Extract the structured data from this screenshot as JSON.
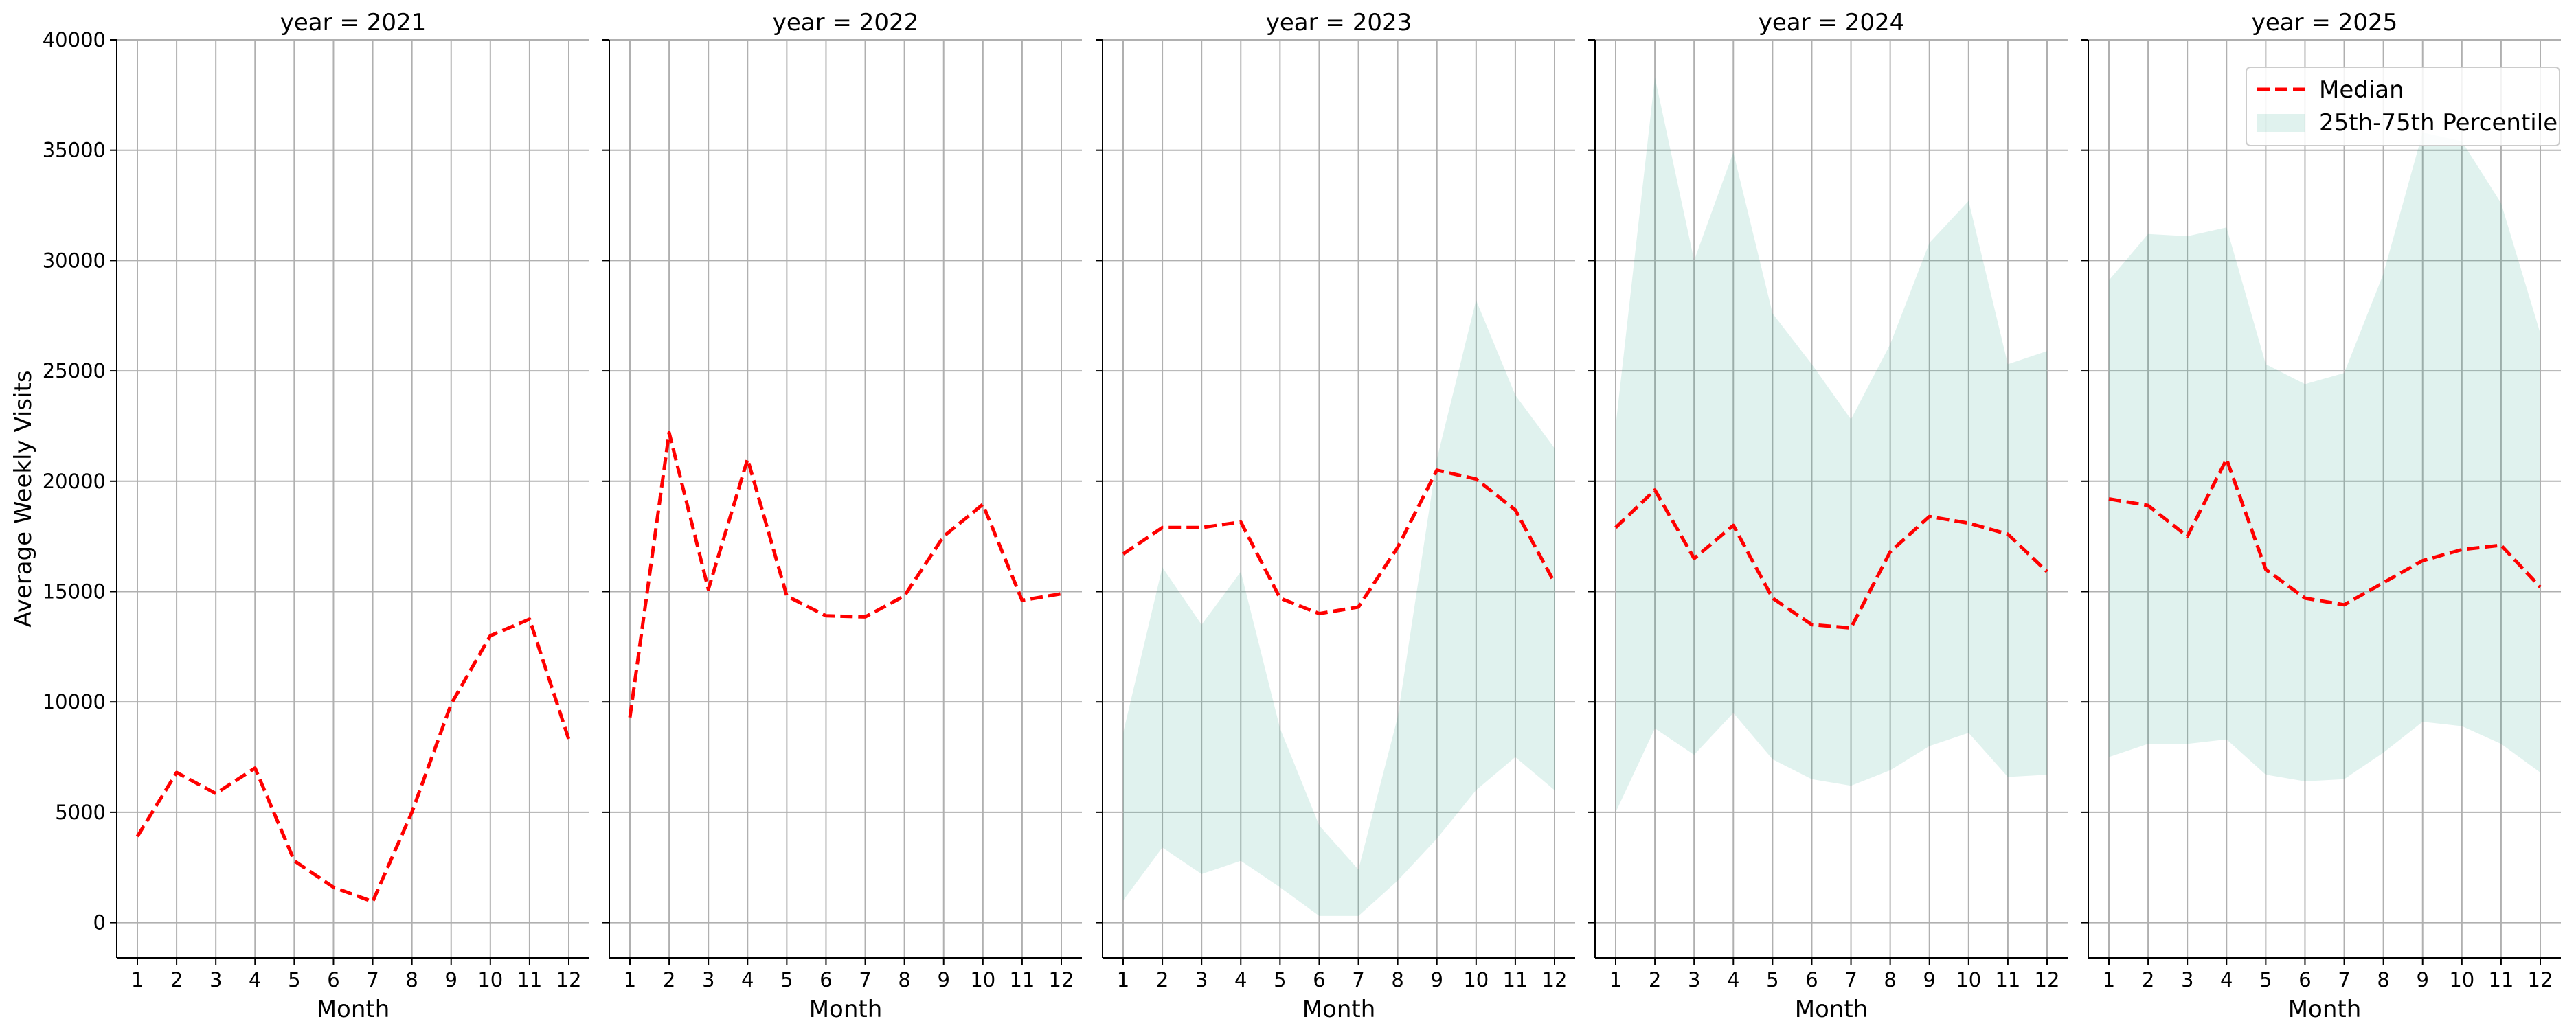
{
  "chart_data": {
    "type": "line",
    "facet_label": "year",
    "xlabel": "Month",
    "ylabel": "Average Weekly Visits",
    "x": [
      1,
      2,
      3,
      4,
      5,
      6,
      7,
      8,
      9,
      10,
      11,
      12
    ],
    "x_ticks": [
      "1",
      "2",
      "3",
      "4",
      "5",
      "6",
      "7",
      "8",
      "9",
      "10",
      "11",
      "12"
    ],
    "ylim": [
      -1600,
      40000
    ],
    "y_ticks": [
      "0",
      "5000",
      "10000",
      "15000",
      "20000",
      "25000",
      "30000",
      "35000",
      "40000"
    ],
    "grid": true,
    "legend": {
      "position": "top-right",
      "median_label": "Median",
      "band_label": "25th-75th Percentile"
    },
    "colors": {
      "median": "#ff0000",
      "band": "#2ca58d"
    },
    "panels": [
      {
        "title": "year = 2021",
        "median": [
          3900,
          6800,
          5850,
          7000,
          2800,
          1600,
          950,
          5000,
          9900,
          13000,
          13750,
          8300
        ],
        "p25": null,
        "p75": null
      },
      {
        "title": "year = 2022",
        "median": [
          9300,
          22200,
          15100,
          21000,
          14800,
          13900,
          13850,
          14800,
          17500,
          18950,
          14600,
          14900
        ],
        "p25": null,
        "p75": null
      },
      {
        "title": "year = 2023",
        "median": [
          16700,
          17900,
          17900,
          18150,
          14700,
          14000,
          14300,
          17000,
          20500,
          20100,
          18700,
          15400
        ],
        "p25": [
          1000,
          3400,
          2200,
          2800,
          1600,
          300,
          300,
          1900,
          3800,
          6000,
          7500,
          6000
        ],
        "p75": [
          8600,
          16100,
          13500,
          15900,
          8800,
          4400,
          2400,
          9300,
          21000,
          28200,
          23900,
          21500
        ]
      },
      {
        "title": "year = 2024",
        "median": [
          17900,
          19600,
          16500,
          18000,
          14700,
          13500,
          13350,
          16800,
          18400,
          18100,
          17600,
          15900
        ],
        "p25": [
          5000,
          8800,
          7600,
          9500,
          7400,
          6500,
          6200,
          6900,
          8000,
          8600,
          6600,
          6700
        ],
        "p75": [
          22500,
          38300,
          30000,
          34900,
          27600,
          25300,
          22800,
          26200,
          30800,
          32700,
          25300,
          25900
        ]
      },
      {
        "title": "year = 2025",
        "median": [
          19200,
          18900,
          17500,
          21000,
          16000,
          14700,
          14400,
          15400,
          16400,
          16900,
          17100,
          15200
        ],
        "p25": [
          7500,
          8100,
          8100,
          8300,
          6700,
          6400,
          6500,
          7700,
          9100,
          8900,
          8100,
          6800
        ],
        "p75": [
          29100,
          31200,
          31100,
          31500,
          25300,
          24400,
          24900,
          29400,
          35800,
          35400,
          32600,
          26700
        ]
      }
    ]
  }
}
